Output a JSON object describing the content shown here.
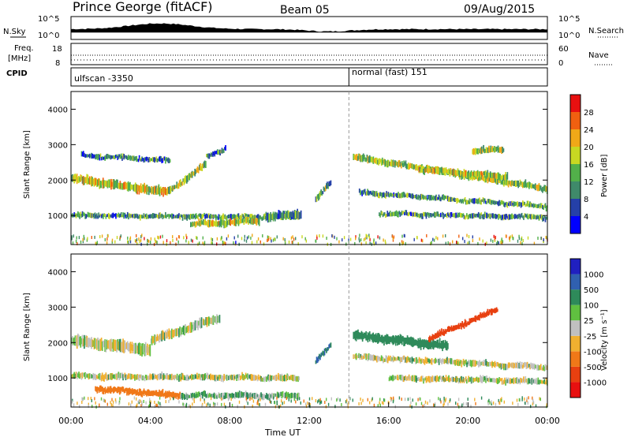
{
  "header": {
    "station": "Prince George (fitACF)",
    "beam": "Beam 05",
    "date": "09/Aug/2015"
  },
  "left_labels": {
    "nsky": "N.Sky",
    "freq_1": "Freq.",
    "freq_2": "[MHz]",
    "cpid": "CPID"
  },
  "right_labels": {
    "nsearch": "N.Search",
    "nave": "Nave"
  },
  "sky_axis": {
    "left_top": "10^5",
    "left_bot": "10^0",
    "right_top": "10^5",
    "right_bot": "10^0"
  },
  "freq_axis": {
    "left_top": "18",
    "left_bot": "8",
    "right_top": "60",
    "right_bot": "0"
  },
  "cpid": {
    "mode_1": "ulfscan -3350",
    "mode_2": "normal (fast) 151",
    "switch_hour": 14.0
  },
  "x_axis": {
    "label": "Time UT",
    "ticks": [
      "00:00",
      "04:00",
      "08:00",
      "12:00",
      "16:00",
      "20:00",
      "00:00"
    ],
    "range_hours": [
      0,
      24
    ]
  },
  "power_panel": {
    "ylabel": "Slant Range [km]",
    "yticks": [
      "1000",
      "2000",
      "3000",
      "4000"
    ],
    "colorbar_label": "Power [dB]",
    "colorbar_ticks": [
      "4",
      "8",
      "12",
      "16",
      "20",
      "24",
      "28"
    ],
    "colors": [
      "#0000ff",
      "#2540a8",
      "#3f8a6a",
      "#52b04a",
      "#c8d822",
      "#f0a818",
      "#f06010",
      "#e81010"
    ]
  },
  "velocity_panel": {
    "ylabel": "Slant Range [km]",
    "yticks": [
      "1000",
      "2000",
      "3000",
      "4000"
    ],
    "colorbar_label": "Velocity [m s⁻¹]",
    "colorbar_ticks": [
      "1000",
      "500",
      "100",
      "25",
      "-25",
      "-100",
      "-500",
      "-1000"
    ],
    "colors": [
      "#2020c0",
      "#3060b0",
      "#2e8a5a",
      "#60c040",
      "#c0c0c0",
      "#f0b030",
      "#f07818",
      "#e84010",
      "#e81010"
    ]
  },
  "chart_data": {
    "type": "heatmap",
    "title": "Prince George (fitACF) Beam 05 09/Aug/2015",
    "xlabel": "Time UT",
    "ylabel": "Slant Range [km]",
    "xlim_hours": [
      0,
      24
    ],
    "ylim_km": [
      180,
      4500
    ],
    "power_regions": [
      {
        "t0": 0.0,
        "t1": 4.8,
        "r_center": [
          2050,
          1650
        ],
        "width": 220,
        "level": 0.6
      },
      {
        "t0": 0.5,
        "t1": 5.0,
        "r_center": [
          2700,
          2550
        ],
        "width": 120,
        "level": 0.3
      },
      {
        "t0": 4.8,
        "t1": 6.8,
        "r_center": [
          1650,
          2450
        ],
        "width": 160,
        "level": 0.5
      },
      {
        "t0": 6.8,
        "t1": 7.8,
        "r_center": [
          2650,
          2900
        ],
        "width": 120,
        "level": 0.3
      },
      {
        "t0": 0.0,
        "t1": 11.5,
        "r_center": [
          1000,
          950
        ],
        "width": 120,
        "level": 0.35
      },
      {
        "t0": 6.0,
        "t1": 9.5,
        "r_center": [
          750,
          850
        ],
        "width": 160,
        "level": 0.55
      },
      {
        "t0": 9.8,
        "t1": 11.6,
        "r_center": [
          950,
          1050
        ],
        "width": 200,
        "level": 0.3
      },
      {
        "t0": 12.3,
        "t1": 13.1,
        "r_center": [
          1450,
          1950
        ],
        "width": 140,
        "level": 0.4
      },
      {
        "t0": 14.2,
        "t1": 24.0,
        "r_center": [
          2650,
          1750
        ],
        "width": 160,
        "level": 0.5
      },
      {
        "t0": 14.5,
        "t1": 24.0,
        "r_center": [
          1650,
          1250
        ],
        "width": 120,
        "level": 0.35
      },
      {
        "t0": 15.5,
        "t1": 24.0,
        "r_center": [
          1050,
          950
        ],
        "width": 120,
        "level": 0.35
      },
      {
        "t0": 17.5,
        "t1": 22.0,
        "r_center": [
          2300,
          2100
        ],
        "width": 160,
        "level": 0.55
      },
      {
        "t0": 20.2,
        "t1": 21.8,
        "r_center": [
          2800,
          2900
        ],
        "width": 150,
        "level": 0.5
      }
    ],
    "velocity_regions": [
      {
        "t0": 0.0,
        "t1": 4.0,
        "r_center": [
          2050,
          1800
        ],
        "width": 280,
        "v": 0
      },
      {
        "t0": 4.0,
        "t1": 7.5,
        "r_center": [
          2050,
          2700
        ],
        "width": 220,
        "v": 0
      },
      {
        "t0": 0.0,
        "t1": 11.5,
        "r_center": [
          1050,
          1000
        ],
        "width": 140,
        "v": 0
      },
      {
        "t0": 1.2,
        "t1": 5.5,
        "r_center": [
          700,
          500
        ],
        "width": 160,
        "v": -300
      },
      {
        "t0": 5.5,
        "t1": 11.5,
        "r_center": [
          500,
          500
        ],
        "width": 140,
        "v": 60
      },
      {
        "t0": 12.3,
        "t1": 13.1,
        "r_center": [
          1450,
          1950
        ],
        "width": 140,
        "v": 300
      },
      {
        "t0": 14.2,
        "t1": 19.0,
        "r_center": [
          2200,
          1900
        ],
        "width": 220,
        "v": 150
      },
      {
        "t0": 18.0,
        "t1": 21.5,
        "r_center": [
          2100,
          2950
        ],
        "width": 140,
        "v": -700
      },
      {
        "t0": 14.2,
        "t1": 24.0,
        "r_center": [
          1600,
          1300
        ],
        "width": 140,
        "v": 0
      },
      {
        "t0": 16.0,
        "t1": 24.0,
        "r_center": [
          1000,
          900
        ],
        "width": 140,
        "v": 0
      }
    ]
  }
}
